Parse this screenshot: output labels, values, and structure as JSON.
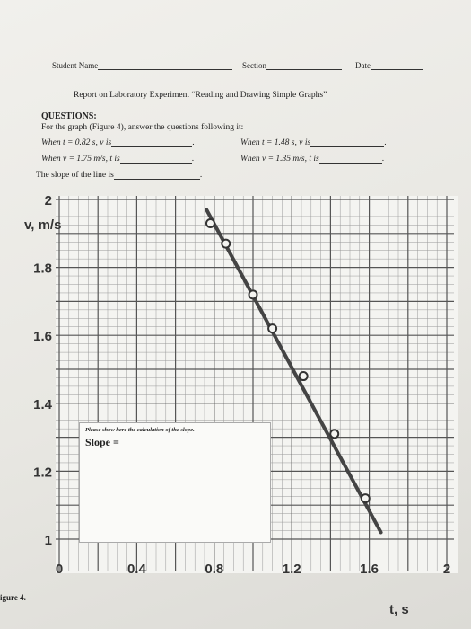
{
  "header": {
    "student_name_label": "Student Name",
    "section_label": "Section",
    "date_label": "Date"
  },
  "report_title": "Report on Laboratory Experiment “Reading and Drawing Simple Graphs”",
  "questions": {
    "heading": "QUESTIONS:",
    "intro": "For the graph (Figure 4), answer the questions following it:",
    "q1": "When t = 0.82 s, v is",
    "q2": "When t = 1.48 s, v is",
    "q3": "When v = 1.75 m/s, t is",
    "q4": "When v = 1.35 m/s, t is",
    "q5": "The slope of the line is"
  },
  "figure_label": "igure 4.",
  "calc_box": {
    "instruction": "Please show here the calculation of the slope.",
    "slope_label": "Slope ="
  },
  "chart_data": {
    "type": "line",
    "title": "",
    "xlabel": "t, s",
    "ylabel": "v, m/s",
    "xlim": [
      0,
      2
    ],
    "ylim": [
      1,
      2
    ],
    "x_ticks": [
      {
        "v": 0,
        "label": "0"
      },
      {
        "v": 0.4,
        "label": "0.4"
      },
      {
        "v": 0.8,
        "label": "0.8"
      },
      {
        "v": 1.2,
        "label": "1.2"
      },
      {
        "v": 1.6,
        "label": "1.6"
      },
      {
        "v": 2,
        "label": "2"
      }
    ],
    "y_ticks": [
      {
        "v": 1,
        "label": "1"
      },
      {
        "v": 1.2,
        "label": "1.2"
      },
      {
        "v": 1.4,
        "label": "1.4"
      },
      {
        "v": 1.6,
        "label": "1.6"
      },
      {
        "v": 1.8,
        "label": "1.8"
      },
      {
        "v": 2,
        "label": "2"
      }
    ],
    "grid": true,
    "series": [
      {
        "x": [
          0.78,
          0.86,
          1.0,
          1.1,
          1.26,
          1.42,
          1.58
        ],
        "y": [
          1.93,
          1.87,
          1.72,
          1.62,
          1.48,
          1.31,
          1.12
        ]
      }
    ],
    "line_start": [
      0.76,
      1.97
    ],
    "line_end": [
      1.66,
      1.02
    ]
  }
}
